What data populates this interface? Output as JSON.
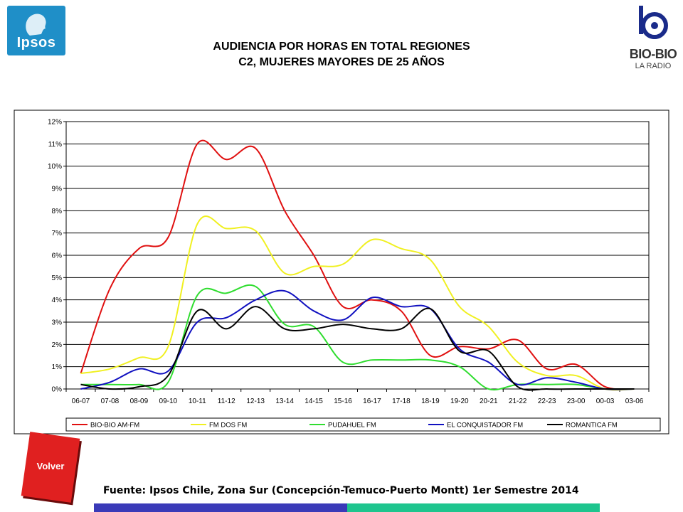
{
  "header": {
    "ipsos_logo": "Ipsos",
    "biobio_logo": "BIO-BIO",
    "biobio_sub": "LA RADIO"
  },
  "chart_data": {
    "type": "line",
    "title_line1": "AUDIENCIA POR HORAS EN TOTAL REGIONES",
    "title_line2": "C2, MUJERES MAYORES DE 25 AÑOS",
    "xlabel": "",
    "ylabel": "",
    "ylim": [
      0,
      12
    ],
    "y_ticks": [
      "0%",
      "1%",
      "2%",
      "3%",
      "4%",
      "5%",
      "6%",
      "7%",
      "8%",
      "9%",
      "10%",
      "11%",
      "12%"
    ],
    "categories": [
      "06-07",
      "07-08",
      "08-09",
      "09-10",
      "10-11",
      "11-12",
      "12-13",
      "13-14",
      "14-15",
      "15-16",
      "16-17",
      "17-18",
      "18-19",
      "19-20",
      "20-21",
      "21-22",
      "22-23",
      "23-00",
      "00-03",
      "03-06"
    ],
    "grid": true,
    "legend_position": "bottom",
    "series": [
      {
        "name": "BIO-BIO AM-FM",
        "color": "#e01010",
        "values": [
          0.7,
          4.5,
          6.3,
          6.8,
          11.0,
          10.3,
          10.8,
          8.0,
          6.0,
          3.7,
          4.0,
          3.5,
          1.5,
          1.9,
          1.8,
          2.2,
          0.9,
          1.1,
          0.1,
          0.0
        ]
      },
      {
        "name": "FM DOS FM",
        "color": "#f0f020",
        "values": [
          0.7,
          0.9,
          1.4,
          1.9,
          7.4,
          7.2,
          7.1,
          5.2,
          5.5,
          5.6,
          6.7,
          6.3,
          5.8,
          3.7,
          2.8,
          1.2,
          0.6,
          0.6,
          0.0,
          0.0
        ]
      },
      {
        "name": "PUDAHUEL FM",
        "color": "#30dd30",
        "values": [
          0.2,
          0.2,
          0.2,
          0.3,
          4.2,
          4.3,
          4.6,
          2.9,
          2.8,
          1.2,
          1.3,
          1.3,
          1.3,
          1.0,
          0.0,
          0.2,
          0.2,
          0.2,
          0.0,
          0.0
        ]
      },
      {
        "name": "EL CONQUISTADOR FM",
        "color": "#1010c0",
        "values": [
          0.0,
          0.3,
          0.9,
          0.8,
          3.0,
          3.2,
          4.0,
          4.4,
          3.5,
          3.1,
          4.1,
          3.7,
          3.6,
          1.8,
          1.2,
          0.2,
          0.5,
          0.3,
          0.0,
          0.0
        ]
      },
      {
        "name": "ROMANTICA FM",
        "color": "#000000",
        "values": [
          0.2,
          0.0,
          0.1,
          0.6,
          3.5,
          2.7,
          3.7,
          2.7,
          2.7,
          2.9,
          2.7,
          2.7,
          3.6,
          1.7,
          1.7,
          0.1,
          0.0,
          0.0,
          0.0,
          0.0
        ]
      }
    ]
  },
  "buttons": {
    "volver_label": "Volver"
  },
  "footer": {
    "source": "Fuente: Ipsos Chile, Zona Sur (Concepción-Temuco-Puerto Montt) 1er Semestre 2014"
  }
}
